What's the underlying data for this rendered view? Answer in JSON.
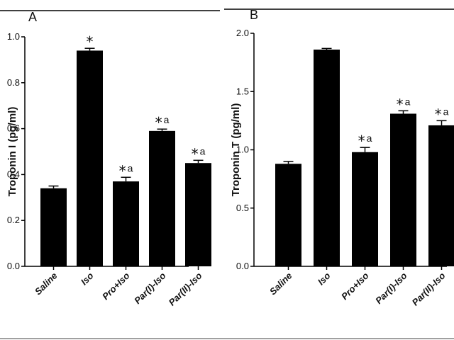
{
  "chart_data": [
    {
      "panel_label": "A",
      "type": "bar",
      "ylabel": "Troponin I (pg/ml)",
      "ylim": [
        0,
        1.0
      ],
      "yticks": [
        "0.0",
        "0.2",
        "0.4",
        "0.6",
        "0.8",
        "1.0"
      ],
      "categories": [
        "Saline",
        "Iso",
        "Pro+Iso",
        "Par(I)-Iso",
        "Par(II)-Iso"
      ],
      "values": [
        0.34,
        0.94,
        0.37,
        0.59,
        0.45
      ],
      "errors": [
        0.01,
        0.01,
        0.018,
        0.008,
        0.012
      ],
      "annotations": [
        "",
        "*",
        "*a",
        "*a",
        "*a"
      ],
      "bar_color": "#000000",
      "grid": false,
      "legend": "none"
    },
    {
      "panel_label": "B",
      "type": "bar",
      "ylabel": "Troponin T (pg/ml)",
      "ylim": [
        0,
        2.0
      ],
      "yticks": [
        "0.0",
        "0.5",
        "1.0",
        "1.5",
        "2.0"
      ],
      "categories": [
        "Saline",
        "Iso",
        "Pro+Iso",
        "Par(I)-Iso",
        "Par(II)-Iso"
      ],
      "values": [
        0.88,
        1.86,
        0.98,
        1.31,
        1.21
      ],
      "errors": [
        0.02,
        0.01,
        0.04,
        0.025,
        0.04
      ],
      "annotations": [
        "",
        "",
        "*a",
        "*a",
        "*a"
      ],
      "bar_color": "#000000",
      "grid": false,
      "legend": "none"
    }
  ]
}
